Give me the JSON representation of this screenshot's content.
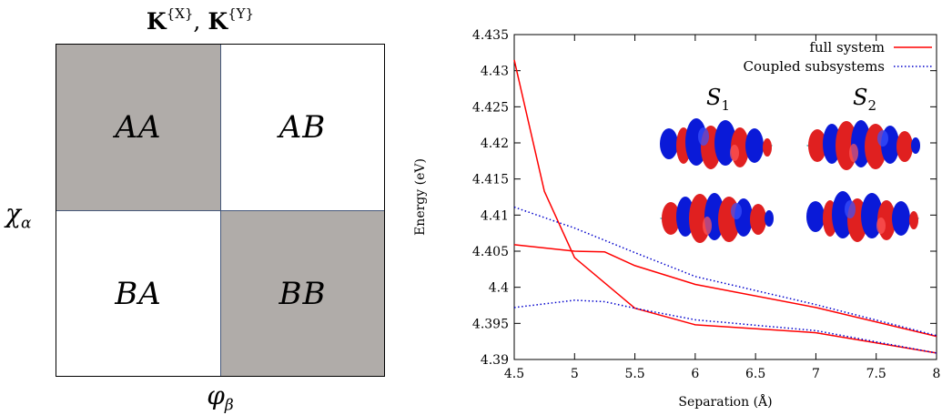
{
  "matrix": {
    "title_parts": [
      "K",
      "{X}",
      ", ",
      "K",
      "{Y}"
    ],
    "row_label": "χ",
    "row_label_sub": "α",
    "col_label": "φ",
    "col_label_sub": "β",
    "blocks": {
      "aa": "AA",
      "ab": "AB",
      "ba": "BA",
      "bb": "BB"
    },
    "colors": {
      "shaded": "#b0aca9",
      "border": "#46587a"
    }
  },
  "chart_data": {
    "type": "line",
    "xlabel": "Separation (Å)",
    "ylabel": "Energy (eV)",
    "xlim": [
      4.5,
      8
    ],
    "ylim": [
      4.39,
      4.435
    ],
    "xticks": [
      "4.5",
      "5",
      "5.5",
      "6",
      "6.5",
      "7",
      "7.5",
      "8"
    ],
    "yticks": [
      "4.39",
      "4.395",
      "4.4",
      "4.405",
      "4.41",
      "4.415",
      "4.42",
      "4.425",
      "4.43",
      "4.435"
    ],
    "grid": false,
    "legend_position": "top-right",
    "legend": [
      "full system",
      "Coupled subsystems"
    ],
    "series": [
      {
        "name": "full system",
        "style": "solid",
        "color": "#ff0000",
        "x": [
          4.5,
          4.75,
          5.0,
          5.5,
          6.0,
          7.0,
          8.0
        ],
        "y": [
          4.4315,
          4.4133,
          4.4041,
          4.3971,
          4.3948,
          4.3937,
          4.3909
        ]
      },
      {
        "name": "full system",
        "style": "solid",
        "color": "#ff0000",
        "x": [
          4.5,
          5.0,
          5.25,
          5.5,
          6.0,
          7.0,
          8.0
        ],
        "y": [
          4.4059,
          4.405,
          4.4049,
          4.403,
          4.4004,
          4.3972,
          4.3932
        ]
      },
      {
        "name": "Coupled subsystems",
        "style": "dotted",
        "color": "#0000cc",
        "x": [
          4.5,
          5.0,
          5.5,
          6.0,
          7.0,
          8.0
        ],
        "y": [
          4.4111,
          4.4082,
          4.4048,
          4.4015,
          4.3976,
          4.3933
        ]
      },
      {
        "name": "Coupled subsystems",
        "style": "dotted",
        "color": "#0000cc",
        "x": [
          4.5,
          5.0,
          5.25,
          5.5,
          6.0,
          7.0,
          8.0
        ],
        "y": [
          4.3972,
          4.3982,
          4.398,
          4.3971,
          4.3955,
          4.394,
          4.3909
        ]
      }
    ],
    "annotations": [
      {
        "text": "S",
        "sub": "1"
      },
      {
        "text": "S",
        "sub": "2"
      }
    ]
  }
}
